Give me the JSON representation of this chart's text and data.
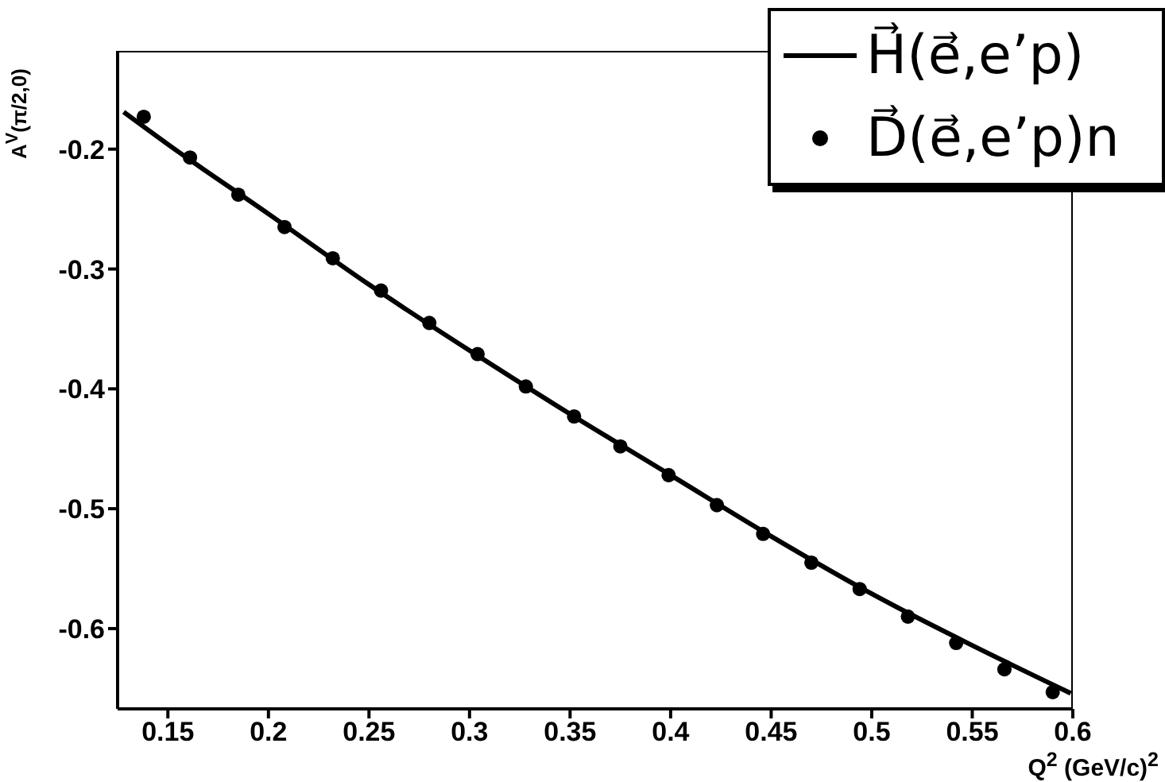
{
  "chart_data": {
    "type": "line",
    "xlabel": "Q$^{2}$ (GeV/c)$^{2}$",
    "ylabel": "A$^{V}$(π/2,0)",
    "xlim": [
      0.125,
      0.6
    ],
    "xticks": [
      0.15,
      0.2,
      0.25,
      0.3,
      0.35,
      0.4,
      0.45,
      0.5,
      0.55,
      0.6
    ],
    "ylim": [
      -0.667,
      -0.118
    ],
    "yticks": [
      -0.6,
      -0.5,
      -0.4,
      -0.3,
      -0.2
    ],
    "legend": "top right",
    "series": [
      {
        "name": "H⃗(e⃗,e’p)",
        "color": "#000000",
        "line_style": "solid",
        "x": [
          0.128,
          0.15,
          0.2,
          0.25,
          0.3,
          0.35,
          0.4,
          0.45,
          0.5,
          0.55,
          0.599
        ],
        "values": [
          -0.169,
          -0.196,
          -0.254,
          -0.313,
          -0.368,
          -0.421,
          -0.472,
          -0.523,
          -0.571,
          -0.614,
          -0.654
        ]
      },
      {
        "name": "D⃗(e⃗,e’p)n",
        "type": "scatter",
        "marker": "circle",
        "color": "#000000",
        "x": [
          0.138,
          0.161,
          0.185,
          0.208,
          0.232,
          0.256,
          0.28,
          0.304,
          0.328,
          0.352,
          0.375,
          0.399,
          0.423,
          0.446,
          0.47,
          0.494,
          0.518,
          0.542,
          0.566,
          0.59
        ],
        "values": [
          -0.173,
          -0.207,
          -0.238,
          -0.265,
          -0.291,
          -0.318,
          -0.345,
          -0.371,
          -0.398,
          -0.423,
          -0.448,
          -0.472,
          -0.497,
          -0.521,
          -0.545,
          -0.567,
          -0.59,
          -0.612,
          -0.634,
          -0.653
        ]
      }
    ]
  }
}
